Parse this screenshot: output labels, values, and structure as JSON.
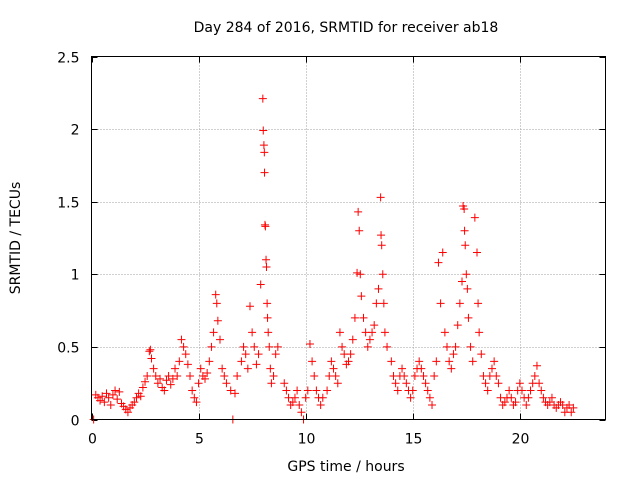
{
  "chart_data": {
    "type": "scatter",
    "title": "Day 284 of 2016, SRMTID for receiver ab18",
    "xlabel": "GPS time / hours",
    "ylabel": "SRMTID / TECUs",
    "xlim": [
      0,
      24
    ],
    "ylim": [
      0,
      2.5
    ],
    "x_ticks": [
      0,
      5,
      10,
      15,
      20
    ],
    "x_tick_labels": [
      "0",
      "5",
      "10",
      "15",
      "20"
    ],
    "y_ticks": [
      0,
      0.5,
      1,
      1.5,
      2,
      2.5
    ],
    "y_tick_labels": [
      "0",
      "0.5",
      "1",
      "1.5",
      "2",
      "2.5"
    ],
    "grid": true,
    "marker": "+",
    "series": [
      {
        "name": "SRMTID",
        "color": "#ff0000",
        "points": [
          [
            0.1,
            0.0
          ],
          [
            0.2,
            0.17
          ],
          [
            0.3,
            0.15
          ],
          [
            0.4,
            0.13
          ],
          [
            0.5,
            0.16
          ],
          [
            0.6,
            0.12
          ],
          [
            0.7,
            0.18
          ],
          [
            0.8,
            0.15
          ],
          [
            0.9,
            0.1
          ],
          [
            1.0,
            0.17
          ],
          [
            1.1,
            0.2
          ],
          [
            1.2,
            0.14
          ],
          [
            1.3,
            0.19
          ],
          [
            1.4,
            0.11
          ],
          [
            1.5,
            0.09
          ],
          [
            1.6,
            0.07
          ],
          [
            1.7,
            0.05
          ],
          [
            1.8,
            0.08
          ],
          [
            1.9,
            0.1
          ],
          [
            2.0,
            0.12
          ],
          [
            2.1,
            0.15
          ],
          [
            2.2,
            0.18
          ],
          [
            2.3,
            0.16
          ],
          [
            2.4,
            0.22
          ],
          [
            2.5,
            0.26
          ],
          [
            2.6,
            0.3
          ],
          [
            2.7,
            0.47
          ],
          [
            2.75,
            0.48
          ],
          [
            2.8,
            0.42
          ],
          [
            2.9,
            0.35
          ],
          [
            3.0,
            0.3
          ],
          [
            3.1,
            0.25
          ],
          [
            3.2,
            0.28
          ],
          [
            3.3,
            0.22
          ],
          [
            3.4,
            0.2
          ],
          [
            3.5,
            0.27
          ],
          [
            3.6,
            0.3
          ],
          [
            3.7,
            0.24
          ],
          [
            3.8,
            0.28
          ],
          [
            3.9,
            0.35
          ],
          [
            4.0,
            0.3
          ],
          [
            4.1,
            0.4
          ],
          [
            4.2,
            0.55
          ],
          [
            4.3,
            0.5
          ],
          [
            4.4,
            0.45
          ],
          [
            4.5,
            0.38
          ],
          [
            4.6,
            0.3
          ],
          [
            4.7,
            0.2
          ],
          [
            4.8,
            0.15
          ],
          [
            4.9,
            0.12
          ],
          [
            5.0,
            0.25
          ],
          [
            5.1,
            0.35
          ],
          [
            5.2,
            0.3
          ],
          [
            5.3,
            0.28
          ],
          [
            5.4,
            0.32
          ],
          [
            5.5,
            0.4
          ],
          [
            5.6,
            0.5
          ],
          [
            5.7,
            0.6
          ],
          [
            5.8,
            0.86
          ],
          [
            5.85,
            0.8
          ],
          [
            5.9,
            0.68
          ],
          [
            6.0,
            0.55
          ],
          [
            6.1,
            0.35
          ],
          [
            6.2,
            0.3
          ],
          [
            6.3,
            0.25
          ],
          [
            6.5,
            0.2
          ],
          [
            6.6,
            0.0
          ],
          [
            6.7,
            0.18
          ],
          [
            6.8,
            0.3
          ],
          [
            7.0,
            0.4
          ],
          [
            7.1,
            0.5
          ],
          [
            7.2,
            0.45
          ],
          [
            7.3,
            0.35
          ],
          [
            7.4,
            0.78
          ],
          [
            7.5,
            0.6
          ],
          [
            7.6,
            0.5
          ],
          [
            7.7,
            0.38
          ],
          [
            7.8,
            0.45
          ],
          [
            7.9,
            0.93
          ],
          [
            8.0,
            2.21
          ],
          [
            8.02,
            1.99
          ],
          [
            8.05,
            1.89
          ],
          [
            8.07,
            1.84
          ],
          [
            8.08,
            1.7
          ],
          [
            8.1,
            1.34
          ],
          [
            8.12,
            1.33
          ],
          [
            8.15,
            1.1
          ],
          [
            8.17,
            1.05
          ],
          [
            8.2,
            0.8
          ],
          [
            8.22,
            0.7
          ],
          [
            8.25,
            0.6
          ],
          [
            8.3,
            0.5
          ],
          [
            8.35,
            0.35
          ],
          [
            8.4,
            0.25
          ],
          [
            8.5,
            0.3
          ],
          [
            8.6,
            0.45
          ],
          [
            8.7,
            0.5
          ],
          [
            9.0,
            0.25
          ],
          [
            9.1,
            0.2
          ],
          [
            9.2,
            0.15
          ],
          [
            9.3,
            0.1
          ],
          [
            9.4,
            0.12
          ],
          [
            9.5,
            0.15
          ],
          [
            9.6,
            0.2
          ],
          [
            9.7,
            0.1
          ],
          [
            9.8,
            0.05
          ],
          [
            9.9,
            0.0
          ],
          [
            10.0,
            0.15
          ],
          [
            10.1,
            0.2
          ],
          [
            10.2,
            0.52
          ],
          [
            10.3,
            0.4
          ],
          [
            10.4,
            0.3
          ],
          [
            10.5,
            0.2
          ],
          [
            10.6,
            0.15
          ],
          [
            10.7,
            0.1
          ],
          [
            10.8,
            0.15
          ],
          [
            11.0,
            0.2
          ],
          [
            11.1,
            0.3
          ],
          [
            11.2,
            0.4
          ],
          [
            11.3,
            0.35
          ],
          [
            11.4,
            0.3
          ],
          [
            11.5,
            0.25
          ],
          [
            11.6,
            0.6
          ],
          [
            11.7,
            0.5
          ],
          [
            11.8,
            0.45
          ],
          [
            11.9,
            0.38
          ],
          [
            12.0,
            0.4
          ],
          [
            12.1,
            0.45
          ],
          [
            12.2,
            0.55
          ],
          [
            12.3,
            0.7
          ],
          [
            12.4,
            1.01
          ],
          [
            12.45,
            1.43
          ],
          [
            12.5,
            1.3
          ],
          [
            12.55,
            1.0
          ],
          [
            12.6,
            0.85
          ],
          [
            12.7,
            0.7
          ],
          [
            12.8,
            0.6
          ],
          [
            12.9,
            0.5
          ],
          [
            13.0,
            0.55
          ],
          [
            13.1,
            0.6
          ],
          [
            13.2,
            0.65
          ],
          [
            13.3,
            0.8
          ],
          [
            13.4,
            0.9
          ],
          [
            13.5,
            1.53
          ],
          [
            13.52,
            1.27
          ],
          [
            13.55,
            1.2
          ],
          [
            13.6,
            1.0
          ],
          [
            13.65,
            0.8
          ],
          [
            13.7,
            0.6
          ],
          [
            13.8,
            0.5
          ],
          [
            14.0,
            0.4
          ],
          [
            14.1,
            0.3
          ],
          [
            14.2,
            0.25
          ],
          [
            14.3,
            0.2
          ],
          [
            14.4,
            0.3
          ],
          [
            14.5,
            0.35
          ],
          [
            14.6,
            0.3
          ],
          [
            14.7,
            0.25
          ],
          [
            14.8,
            0.2
          ],
          [
            14.9,
            0.15
          ],
          [
            15.0,
            0.2
          ],
          [
            15.1,
            0.3
          ],
          [
            15.2,
            0.35
          ],
          [
            15.3,
            0.4
          ],
          [
            15.4,
            0.35
          ],
          [
            15.5,
            0.3
          ],
          [
            15.6,
            0.25
          ],
          [
            15.7,
            0.2
          ],
          [
            15.8,
            0.15
          ],
          [
            15.9,
            0.1
          ],
          [
            16.0,
            0.3
          ],
          [
            16.1,
            0.4
          ],
          [
            16.2,
            1.08
          ],
          [
            16.3,
            0.8
          ],
          [
            16.4,
            1.15
          ],
          [
            16.5,
            0.6
          ],
          [
            16.6,
            0.5
          ],
          [
            16.7,
            0.4
          ],
          [
            16.8,
            0.35
          ],
          [
            16.9,
            0.45
          ],
          [
            17.0,
            0.5
          ],
          [
            17.1,
            0.65
          ],
          [
            17.2,
            0.8
          ],
          [
            17.3,
            0.95
          ],
          [
            17.35,
            1.47
          ],
          [
            17.4,
            1.45
          ],
          [
            17.42,
            1.3
          ],
          [
            17.45,
            1.2
          ],
          [
            17.5,
            1.0
          ],
          [
            17.55,
            0.9
          ],
          [
            17.6,
            0.7
          ],
          [
            17.7,
            0.5
          ],
          [
            17.8,
            0.4
          ],
          [
            17.9,
            1.39
          ],
          [
            18.0,
            1.15
          ],
          [
            18.05,
            0.8
          ],
          [
            18.1,
            0.6
          ],
          [
            18.2,
            0.45
          ],
          [
            18.3,
            0.3
          ],
          [
            18.4,
            0.25
          ],
          [
            18.5,
            0.2
          ],
          [
            18.6,
            0.3
          ],
          [
            18.7,
            0.35
          ],
          [
            18.8,
            0.4
          ],
          [
            18.9,
            0.3
          ],
          [
            19.0,
            0.25
          ],
          [
            19.1,
            0.15
          ],
          [
            19.2,
            0.1
          ],
          [
            19.3,
            0.12
          ],
          [
            19.4,
            0.15
          ],
          [
            19.5,
            0.2
          ],
          [
            19.6,
            0.15
          ],
          [
            19.7,
            0.1
          ],
          [
            19.8,
            0.12
          ],
          [
            19.9,
            0.2
          ],
          [
            20.0,
            0.25
          ],
          [
            20.1,
            0.2
          ],
          [
            20.2,
            0.15
          ],
          [
            20.3,
            0.1
          ],
          [
            20.4,
            0.15
          ],
          [
            20.5,
            0.2
          ],
          [
            20.6,
            0.25
          ],
          [
            20.7,
            0.3
          ],
          [
            20.8,
            0.37
          ],
          [
            20.9,
            0.25
          ],
          [
            21.0,
            0.2
          ],
          [
            21.1,
            0.15
          ],
          [
            21.2,
            0.12
          ],
          [
            21.3,
            0.1
          ],
          [
            21.4,
            0.12
          ],
          [
            21.5,
            0.15
          ],
          [
            21.6,
            0.1
          ],
          [
            21.7,
            0.08
          ],
          [
            21.8,
            0.1
          ],
          [
            21.9,
            0.12
          ],
          [
            22.0,
            0.1
          ],
          [
            22.1,
            0.05
          ],
          [
            22.2,
            0.08
          ],
          [
            22.3,
            0.1
          ],
          [
            22.4,
            0.05
          ],
          [
            22.5,
            0.08
          ]
        ]
      }
    ]
  }
}
